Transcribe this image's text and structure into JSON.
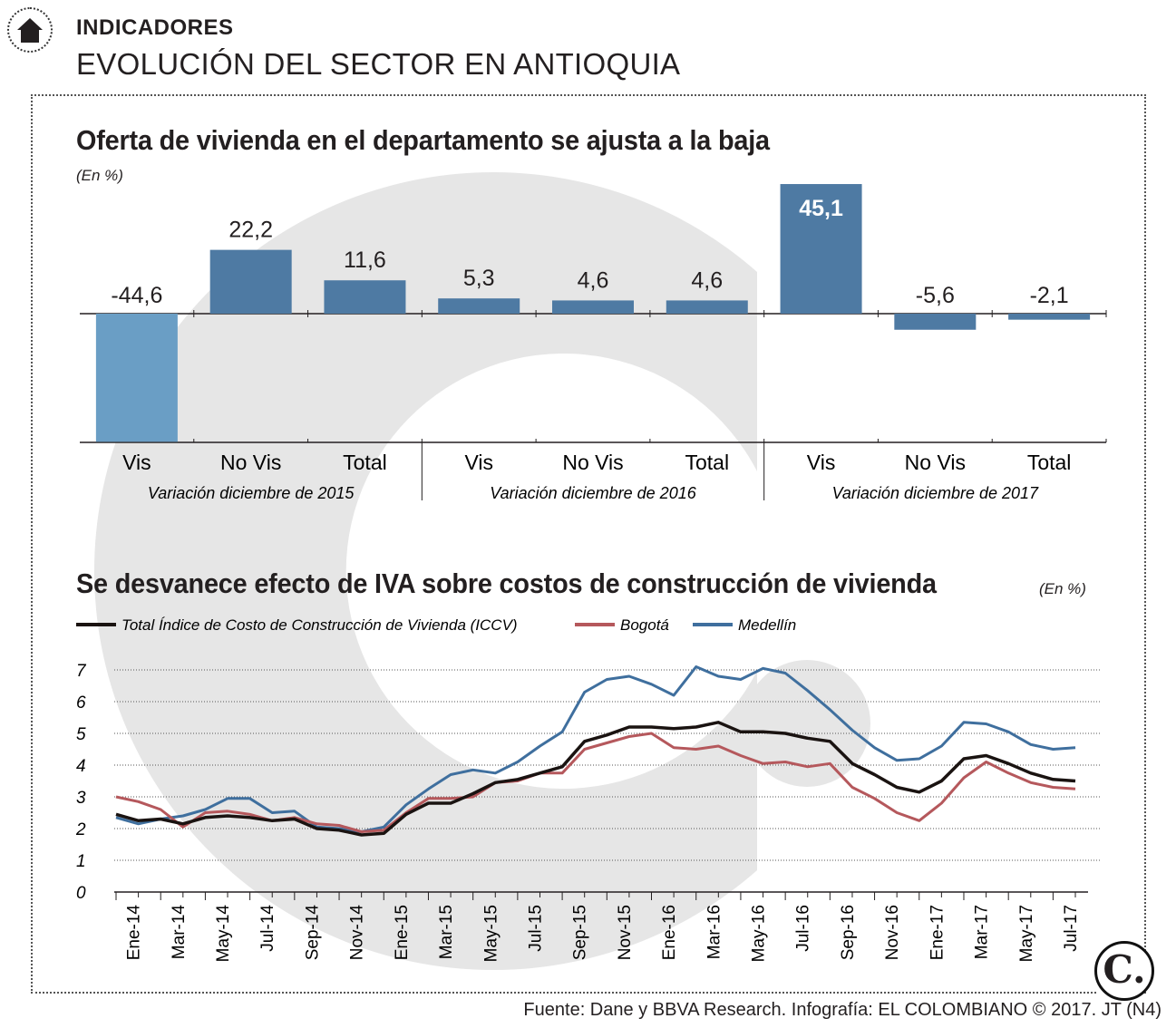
{
  "header": {
    "section_label": "INDICADORES",
    "section_title": "EVOLUCIÓN DEL SECTOR EN ANTIOQUIA",
    "home_icon": "home-icon"
  },
  "colors": {
    "bar_blue": "#4e7aa3",
    "bar_light_blue": "#6a9ec5",
    "iccv": "#1a1311",
    "bogota": "#b5585c",
    "medellin": "#3f6f9e",
    "watermark": "#e6e6e6"
  },
  "chart_data": [
    {
      "type": "bar",
      "title": "Oferta de vivienda en el departamento se ajusta a la baja",
      "unit": "(En %)",
      "categories": [
        "Vis",
        "No Vis",
        "Total",
        "Vis",
        "No Vis",
        "Total",
        "Vis",
        "No Vis",
        "Total"
      ],
      "value_labels": [
        "-44,6",
        "22,2",
        "11,6",
        "5,3",
        "4,6",
        "4,6",
        "45,1",
        "-5,6",
        "-2,1"
      ],
      "values": [
        -44.6,
        22.2,
        11.6,
        5.3,
        4.6,
        4.6,
        45.1,
        -5.6,
        -2.1
      ],
      "groups": [
        "Variación diciembre de 2015",
        "Variación diciembre de 2016",
        "Variación diciembre de 2017"
      ]
    },
    {
      "type": "line",
      "title": "Se desvanece efecto de IVA sobre costos de construcción de vivienda",
      "unit": "(En %)",
      "ylim": [
        0,
        7
      ],
      "yticks": [
        "0",
        "1",
        "2",
        "3",
        "4",
        "5",
        "6",
        "7"
      ],
      "xtick_labels": [
        "Ene-14",
        "Mar-14",
        "May-14",
        "Jul-14",
        "Sep-14",
        "Nov-14",
        "Ene-15",
        "Mar-15",
        "May-15",
        "Jul-15",
        "Sep-15",
        "Nov-15",
        "Ene-16",
        "Mar-16",
        "May-16",
        "Jul-16",
        "Sep-16",
        "Nov-16",
        "Ene-17",
        "Mar-17",
        "May-17",
        "Jul-17"
      ],
      "series": [
        {
          "name": "Total Índice de Costo de Construcción de Vivienda (ICCV)",
          "color": "#1a1311",
          "values": [
            2.45,
            2.25,
            2.3,
            2.15,
            2.35,
            2.4,
            2.35,
            2.25,
            2.3,
            2.0,
            1.95,
            1.8,
            1.85,
            2.45,
            2.8,
            2.8,
            3.1,
            3.45,
            3.55,
            3.75,
            3.95,
            4.75,
            4.95,
            5.2,
            5.2,
            5.15,
            5.2,
            5.35,
            5.05,
            5.05,
            5.0,
            4.85,
            4.75,
            4.05,
            3.7,
            3.3,
            3.15,
            3.5,
            4.2,
            4.3,
            4.05,
            3.75,
            3.55,
            3.5
          ]
        },
        {
          "name": "Bogotá",
          "color": "#b5585c",
          "values": [
            3.0,
            2.85,
            2.6,
            2.05,
            2.5,
            2.55,
            2.45,
            2.25,
            2.35,
            2.15,
            2.1,
            1.9,
            1.95,
            2.5,
            2.95,
            2.95,
            3.0,
            3.45,
            3.5,
            3.75,
            3.75,
            4.5,
            4.7,
            4.9,
            5.0,
            4.55,
            4.5,
            4.6,
            4.3,
            4.05,
            4.1,
            3.95,
            4.05,
            3.3,
            2.95,
            2.5,
            2.25,
            2.8,
            3.6,
            4.1,
            3.75,
            3.45,
            3.3,
            3.25
          ]
        },
        {
          "name": "Medellín",
          "color": "#3f6f9e",
          "values": [
            2.35,
            2.15,
            2.3,
            2.4,
            2.6,
            2.95,
            2.95,
            2.5,
            2.55,
            2.05,
            2.0,
            1.9,
            2.05,
            2.75,
            3.25,
            3.7,
            3.85,
            3.75,
            4.1,
            4.6,
            5.05,
            6.3,
            6.7,
            6.8,
            6.55,
            6.2,
            7.1,
            6.8,
            6.7,
            7.05,
            6.9,
            6.35,
            5.75,
            5.1,
            4.55,
            4.15,
            4.2,
            4.6,
            5.35,
            5.3,
            5.05,
            4.65,
            4.5,
            4.55
          ]
        }
      ]
    }
  ],
  "footer": {
    "source": "Fuente: Dane y BBVA Research. Infografía: EL COLOMBIANO © 2017. JT (N4)",
    "logo": "C."
  }
}
